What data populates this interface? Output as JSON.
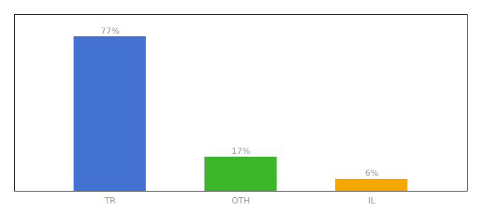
{
  "chart_data": {
    "type": "bar",
    "categories": [
      "TR",
      "OTH",
      "IL"
    ],
    "values": [
      77,
      17,
      6
    ],
    "value_labels": [
      "77%",
      "17%",
      "6%"
    ],
    "colors": [
      "#4472d3",
      "#3db52a",
      "#f5a800"
    ],
    "ylim": [
      0,
      88
    ],
    "data_labels": true,
    "tick_labels": "x"
  }
}
